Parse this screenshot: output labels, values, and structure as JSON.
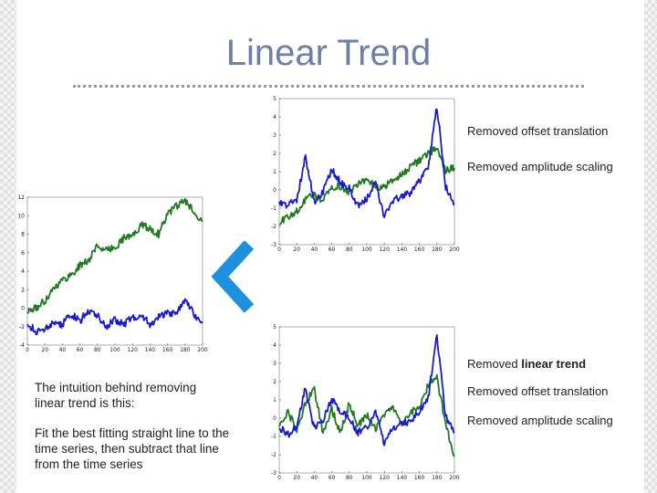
{
  "slide": {
    "title": "Linear Trend",
    "labels_top": {
      "offset": "Removed offset translation",
      "amplitude": "Removed amplitude scaling"
    },
    "labels_bottom": {
      "trend_prefix": "Removed ",
      "trend_bold": "linear trend",
      "offset": "Removed offset translation",
      "amplitude": "Removed amplitude scaling"
    },
    "intuition_text": "The intuition behind removing linear trend is this:",
    "method_text": "Fit the best fitting straight line to the time series, then subtract that line from the time series"
  },
  "colors": {
    "series_blue": "#1a1acc",
    "series_green": "#1f7a1f",
    "arrow": "#1f8fe0"
  },
  "chart_data": [
    {
      "id": "original",
      "type": "line",
      "title": "",
      "xlim": [
        0,
        200
      ],
      "ylim": [
        -4,
        12
      ],
      "xticks": [
        0,
        20,
        40,
        60,
        80,
        100,
        120,
        140,
        160,
        180,
        200
      ],
      "yticks": [
        -4,
        -2,
        0,
        2,
        4,
        6,
        8,
        10,
        12
      ],
      "series": [
        {
          "name": "green",
          "color": "#1f7a1f",
          "x": [
            0,
            10,
            20,
            30,
            40,
            50,
            60,
            70,
            80,
            90,
            100,
            110,
            120,
            130,
            140,
            150,
            160,
            170,
            180,
            190,
            200
          ],
          "y": [
            -0.4,
            0,
            0.8,
            2.2,
            3,
            3.6,
            4.6,
            5.2,
            6.8,
            6.2,
            6.6,
            7.6,
            7.8,
            9,
            8.6,
            8,
            10.2,
            11,
            11.6,
            10.5,
            9.4
          ]
        },
        {
          "name": "blue",
          "color": "#1a1acc",
          "x": [
            0,
            10,
            20,
            30,
            40,
            50,
            60,
            70,
            80,
            90,
            100,
            110,
            120,
            130,
            140,
            150,
            160,
            170,
            180,
            190,
            200
          ],
          "y": [
            -1.6,
            -2.6,
            -2.2,
            -1.6,
            -1.8,
            -0.6,
            -1.4,
            -0.2,
            -0.8,
            -2,
            -1.2,
            -1.8,
            -1,
            -0.7,
            -1.8,
            -1,
            -0.6,
            -0.4,
            1,
            -0.6,
            -1.6
          ]
        }
      ]
    },
    {
      "id": "offset_amplitude_removed",
      "type": "line",
      "title": "",
      "xlim": [
        0,
        200
      ],
      "ylim": [
        -3,
        5
      ],
      "xticks": [
        0,
        20,
        40,
        60,
        80,
        100,
        120,
        140,
        160,
        180,
        200
      ],
      "yticks": [
        -3,
        -2,
        -1,
        0,
        1,
        2,
        3,
        4,
        5
      ],
      "series": [
        {
          "name": "green",
          "color": "#1f7a1f",
          "x": [
            0,
            10,
            20,
            30,
            40,
            50,
            60,
            70,
            80,
            90,
            100,
            110,
            120,
            130,
            140,
            150,
            160,
            170,
            180,
            190,
            200
          ],
          "y": [
            -1.8,
            -1.5,
            -1.2,
            -0.5,
            -0.3,
            -0.6,
            0.2,
            0.2,
            -0.1,
            0.3,
            0.5,
            0.2,
            0.1,
            0.6,
            0.8,
            1.3,
            1.6,
            2,
            2.3,
            1.1,
            1.2
          ]
        },
        {
          "name": "blue",
          "color": "#1a1acc",
          "x": [
            0,
            10,
            20,
            30,
            40,
            50,
            60,
            70,
            80,
            90,
            100,
            110,
            120,
            130,
            140,
            150,
            160,
            170,
            180,
            190,
            200
          ],
          "y": [
            -0.6,
            -0.9,
            -0.5,
            1.8,
            -0.7,
            -0.1,
            1.1,
            0.4,
            0.1,
            -0.9,
            -0.5,
            0.4,
            -1.5,
            -0.6,
            -0.3,
            -0.2,
            0.5,
            1.2,
            4.6,
            0.2,
            -0.8
          ]
        }
      ]
    },
    {
      "id": "linear_trend_removed",
      "type": "line",
      "title": "",
      "xlim": [
        0,
        200
      ],
      "ylim": [
        -3,
        5
      ],
      "xticks": [
        0,
        20,
        40,
        60,
        80,
        100,
        120,
        140,
        160,
        180,
        200
      ],
      "yticks": [
        -3,
        -2,
        -1,
        0,
        1,
        2,
        3,
        4,
        5
      ],
      "series": [
        {
          "name": "green",
          "color": "#1f7a1f",
          "x": [
            0,
            10,
            20,
            30,
            40,
            50,
            60,
            70,
            80,
            90,
            100,
            110,
            120,
            130,
            140,
            150,
            160,
            170,
            180,
            190,
            200
          ],
          "y": [
            -0.4,
            0.3,
            -0.6,
            0.8,
            1.6,
            -0.8,
            0.5,
            -0.8,
            0.8,
            -0.4,
            0.2,
            -0.6,
            0.1,
            0.6,
            -0.4,
            0.3,
            0.6,
            1.8,
            2.2,
            -0.3,
            -2.1
          ]
        },
        {
          "name": "blue",
          "color": "#1a1acc",
          "x": [
            0,
            10,
            20,
            30,
            40,
            50,
            60,
            70,
            80,
            90,
            100,
            110,
            120,
            130,
            140,
            150,
            160,
            170,
            180,
            190,
            200
          ],
          "y": [
            -0.5,
            -0.9,
            -0.4,
            1.7,
            -0.6,
            -0.1,
            1,
            0.3,
            0,
            -0.8,
            -0.5,
            0.4,
            -1.4,
            -0.5,
            -0.3,
            -0.2,
            0.4,
            1.1,
            4.5,
            0.1,
            -0.8
          ]
        }
      ]
    }
  ]
}
